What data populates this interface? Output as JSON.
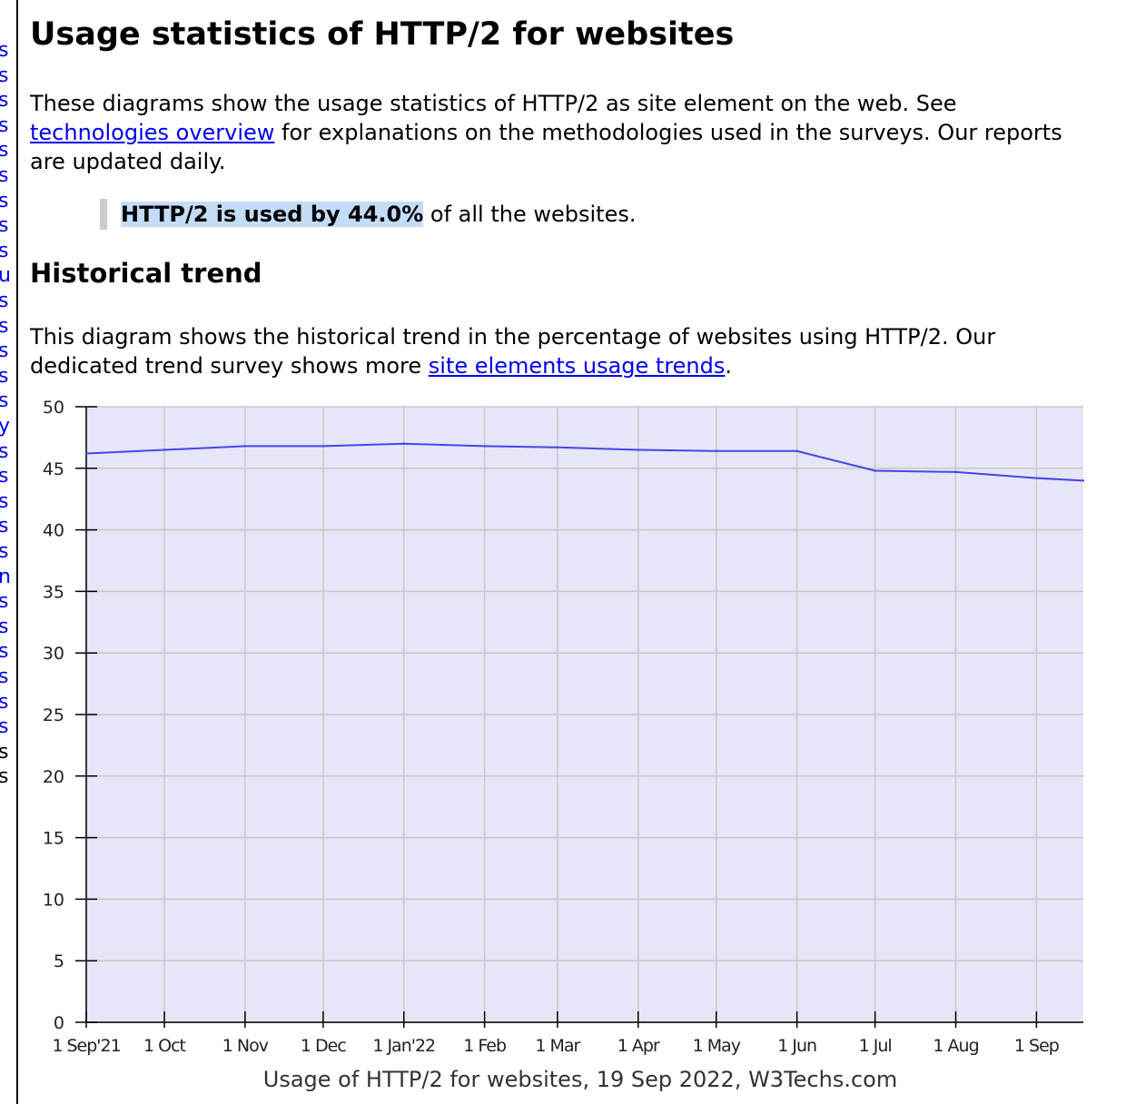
{
  "page": {
    "title": "Usage statistics of HTTP/2 for websites",
    "intro": {
      "before_link": "These diagrams show the usage statistics of HTTP/2 as site element on the web. See ",
      "link_text": "technologies overview",
      "after_link": " for explanations on the methodologies used in the surveys. Our reports are updated daily."
    },
    "highlight": {
      "bold": "HTTP/2 is used by 44.0%",
      "rest": " of all the websites."
    },
    "historical": {
      "heading": "Historical trend",
      "text_before_link": "This diagram shows the historical trend in the percentage of websites using HTTP/2. Our dedicated trend survey shows more ",
      "link_text": "site elements usage trends",
      "text_after_link": "."
    }
  },
  "nav_glyphs": [
    "s",
    "s",
    "s",
    "s",
    "s",
    "s",
    "s",
    "s",
    "s",
    "u",
    "s",
    "s",
    "s",
    "s",
    "s",
    "y",
    "s",
    "s",
    "s",
    "s",
    "s",
    "n",
    "s",
    "s",
    "s",
    "s",
    "s",
    "s",
    "s",
    "s"
  ],
  "chart_data": {
    "type": "line",
    "title": "",
    "caption": "Usage of HTTP/2 for websites, 19 Sep 2022, W3Techs.com",
    "xlabel": "",
    "ylabel": "",
    "ylim": [
      0,
      50
    ],
    "yticks": [
      0,
      5,
      10,
      15,
      20,
      25,
      30,
      35,
      40,
      45,
      50
    ],
    "xlim": [
      "2021-09-01",
      "2022-09-19"
    ],
    "xticks": [
      {
        "date": "2021-09-01",
        "label": "1 Sep'21"
      },
      {
        "date": "2021-10-01",
        "label": "1 Oct"
      },
      {
        "date": "2021-11-01",
        "label": "1 Nov"
      },
      {
        "date": "2021-12-01",
        "label": "1 Dec"
      },
      {
        "date": "2022-01-01",
        "label": "1 Jan'22"
      },
      {
        "date": "2022-02-01",
        "label": "1 Feb"
      },
      {
        "date": "2022-03-01",
        "label": "1 Mar"
      },
      {
        "date": "2022-04-01",
        "label": "1 Apr"
      },
      {
        "date": "2022-05-01",
        "label": "1 May"
      },
      {
        "date": "2022-06-01",
        "label": "1 Jun"
      },
      {
        "date": "2022-07-01",
        "label": "1 Jul"
      },
      {
        "date": "2022-08-01",
        "label": "1 Aug"
      },
      {
        "date": "2022-09-01",
        "label": "1 Sep"
      }
    ],
    "grid": true,
    "colors": {
      "line": "#4444ee",
      "plot_bg": "#e6e6f8",
      "grid": "#c8c8c8"
    },
    "series": [
      {
        "points": [
          {
            "x": "2021-09-01",
            "y": 46.2
          },
          {
            "x": "2021-10-01",
            "y": 46.5
          },
          {
            "x": "2021-11-01",
            "y": 46.8
          },
          {
            "x": "2021-12-01",
            "y": 46.8
          },
          {
            "x": "2022-01-01",
            "y": 47.0
          },
          {
            "x": "2022-02-01",
            "y": 46.8
          },
          {
            "x": "2022-03-01",
            "y": 46.7
          },
          {
            "x": "2022-04-01",
            "y": 46.5
          },
          {
            "x": "2022-05-01",
            "y": 46.4
          },
          {
            "x": "2022-06-01",
            "y": 46.4
          },
          {
            "x": "2022-07-01",
            "y": 44.8
          },
          {
            "x": "2022-08-01",
            "y": 44.7
          },
          {
            "x": "2022-09-01",
            "y": 44.2
          },
          {
            "x": "2022-09-19",
            "y": 44.0
          }
        ]
      }
    ]
  }
}
